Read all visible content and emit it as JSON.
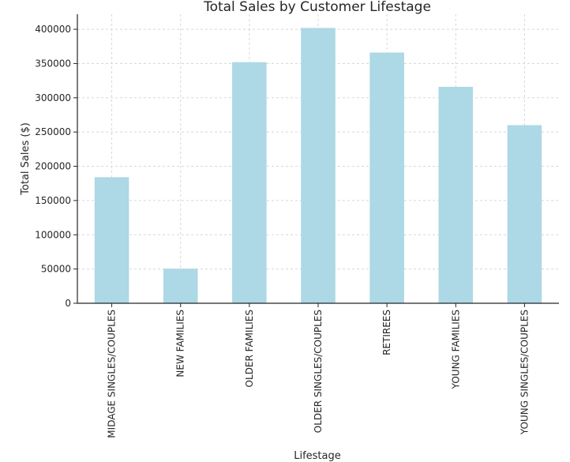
{
  "chart_data": {
    "type": "bar",
    "title": "Total Sales by Customer Lifestage",
    "xlabel": "Lifestage",
    "ylabel": "Total Sales ($)",
    "categories": [
      "MIDAGE SINGLES/COUPLES",
      "NEW FAMILIES",
      "OLDER FAMILIES",
      "OLDER SINGLES/COUPLES",
      "RETIREES",
      "YOUNG FAMILIES",
      "YOUNG SINGLES/COUPLES"
    ],
    "values": [
      184000,
      50500,
      352000,
      402000,
      366000,
      316000,
      260000
    ],
    "ylim": [
      0,
      422000
    ],
    "yticks": [
      0,
      50000,
      100000,
      150000,
      200000,
      250000,
      300000,
      350000,
      400000
    ],
    "ytick_labels": [
      "0",
      "50000",
      "100000",
      "150000",
      "200000",
      "250000",
      "300000",
      "350000",
      "400000"
    ],
    "grid": true,
    "bar_color": "#add8e6",
    "axis_color": "#262626",
    "grid_color": "#d8d8d8"
  }
}
